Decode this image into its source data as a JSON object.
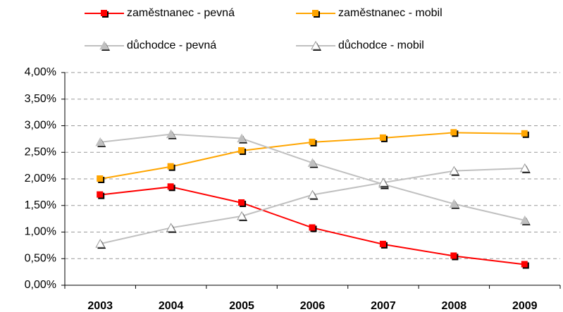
{
  "chart_data": {
    "type": "line",
    "categories": [
      "2003",
      "2004",
      "2005",
      "2006",
      "2007",
      "2008",
      "2009"
    ],
    "series": [
      {
        "name": "zaměstnanec - pevná",
        "color": "#ff0000",
        "marker": "square",
        "values": [
          1.7,
          1.85,
          1.55,
          1.08,
          0.77,
          0.55,
          0.39
        ]
      },
      {
        "name": "zaměstnanec - mobil",
        "color": "#ffa500",
        "marker": "square",
        "values": [
          2.0,
          2.23,
          2.53,
          2.69,
          2.77,
          2.87,
          2.85
        ]
      },
      {
        "name": "důchodce - pevná",
        "color": "#c0c0c0",
        "marker": "triangle",
        "values": [
          2.69,
          2.84,
          2.76,
          2.3,
          1.9,
          1.53,
          1.22
        ]
      },
      {
        "name": "důchodce - mobil",
        "color": "#c0c0c0",
        "marker": "open-triangle",
        "values": [
          0.78,
          1.08,
          1.3,
          1.7,
          1.93,
          2.15,
          2.2
        ]
      }
    ],
    "ylim": [
      0,
      4
    ],
    "yticks": [
      {
        "value": 0,
        "label": "0,00%"
      },
      {
        "value": 0.5,
        "label": "0,50%"
      },
      {
        "value": 1,
        "label": "1,00%"
      },
      {
        "value": 1.5,
        "label": "1,50%"
      },
      {
        "value": 2,
        "label": "2,00%"
      },
      {
        "value": 2.5,
        "label": "2,50%"
      },
      {
        "value": 3,
        "label": "3,00%"
      },
      {
        "value": 3.5,
        "label": "3,50%"
      },
      {
        "value": 4,
        "label": "4,00%"
      }
    ],
    "grid": true,
    "legend": "top"
  }
}
